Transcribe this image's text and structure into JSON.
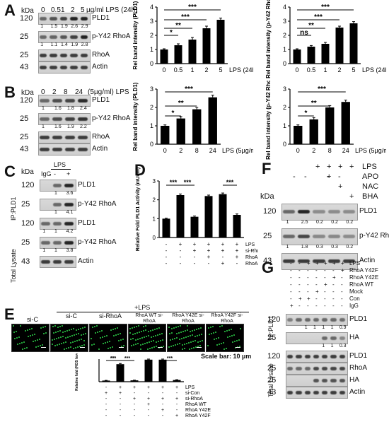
{
  "panels": {
    "A": {
      "label": "A",
      "kda": "kDa",
      "lanes": [
        "0",
        "0.5",
        "1",
        "2",
        "5"
      ],
      "treatment": "µg/ml LPS (24h)",
      "rows": [
        {
          "mw": "120",
          "name": "PLD1",
          "quant": [
            "1",
            "1.5",
            "1.9",
            "2.6",
            "2.9"
          ]
        },
        {
          "mw": "25",
          "name": "p-Y42 RhoA",
          "quant": [
            "1",
            "1.1",
            "1.4",
            "1.9",
            "2.8"
          ]
        },
        {
          "mw": "25",
          "name": "RhoA",
          "quant": []
        },
        {
          "mw": "43",
          "name": "Actin",
          "quant": []
        }
      ]
    },
    "B": {
      "label": "B",
      "kda": "kDa",
      "lanes": [
        "0",
        "2",
        "8",
        "24"
      ],
      "treatment": "(5µg/ml) LPS",
      "rows": [
        {
          "mw": "120",
          "name": "PLD1",
          "quant": [
            "1",
            "1.6",
            "1.8",
            "2.4"
          ]
        },
        {
          "mw": "25",
          "name": "p-Y42 RhoA",
          "quant": [
            "1",
            "1.6",
            "1.9",
            "2.2"
          ]
        },
        {
          "mw": "25",
          "name": "RhoA",
          "quant": []
        },
        {
          "mw": "43",
          "name": "Actin",
          "quant": []
        }
      ]
    },
    "C": {
      "label": "C",
      "kda": "kDa",
      "cols": [
        "IgG",
        "-",
        "+"
      ],
      "lps": "LPS",
      "ip": "IP:PLD1",
      "total": "Total Lysate",
      "rows": [
        {
          "mw": "120",
          "name": "PLD1",
          "quant": [
            "1",
            "3.6"
          ]
        },
        {
          "mw": "25",
          "name": "p-Y42 RhoA",
          "quant": [
            "1",
            "4.1"
          ]
        },
        {
          "mw": "120",
          "name": "PLD1",
          "quant": [
            "1",
            "1",
            "4.2"
          ]
        },
        {
          "mw": "25",
          "name": "p-Y42 RhoA",
          "quant": [
            "1",
            "1",
            "3.8"
          ]
        },
        {
          "mw": "43",
          "name": "Actin",
          "quant": []
        }
      ]
    },
    "D": {
      "label": "D",
      "rowlabels": [
        "LPS",
        "si-RhoA",
        "RhoA WT",
        "RhoA Y42E"
      ]
    },
    "E": {
      "label": "E",
      "header": "+LPS",
      "images": [
        "si-C",
        "si-C",
        "si-RhoA",
        "RhoA WT si-RhoA",
        "RhoA Y42E si-RhoA",
        "RhoA Y42F si-RhoA"
      ],
      "scalebar": "Scale bar: 10 µm",
      "rowlabels": [
        "LPS",
        "si-Con",
        "si-RhoA",
        "RhoA WT",
        "RhoA Y42E",
        "RhoA Y42F"
      ]
    },
    "F": {
      "label": "F",
      "kda": "kDa",
      "conds": [
        "LPS",
        "APO",
        "NAC",
        "BHA"
      ],
      "rows": [
        {
          "mw": "120",
          "name": "PLD1",
          "quant": [
            "1",
            "2.5",
            "0.2",
            "0.2",
            "0.2"
          ]
        },
        {
          "mw": "25",
          "name": "p-Y42 RhoA",
          "quant": [
            "1",
            "1.8",
            "0.3",
            "0.3",
            "0.2"
          ]
        },
        {
          "mw": "43",
          "name": "Actin",
          "quant": []
        }
      ]
    },
    "G": {
      "label": "G",
      "conds": [
        "LPS",
        "RhoA Y42F",
        "RhoA Y42E",
        "RhoA WT",
        "Mock",
        "Con",
        "IgG"
      ],
      "ip": "IP:PLD1",
      "total": "Total Lysate",
      "rows": [
        {
          "mw": "120",
          "name": "PLD1",
          "quant": [
            "1",
            "1",
            "1",
            "1",
            "0.9"
          ]
        },
        {
          "mw": "25",
          "name": "HA",
          "quant": [
            "1",
            "1",
            "0.3"
          ]
        },
        {
          "mw": "120",
          "name": "PLD1",
          "quant": []
        },
        {
          "mw": "25",
          "name": "RhoA",
          "quant": []
        },
        {
          "mw": "25",
          "name": "HA",
          "quant": []
        },
        {
          "mw": "43",
          "name": "Actin",
          "quant": []
        }
      ]
    }
  },
  "chart_data": [
    {
      "type": "bar",
      "id": "A1",
      "categories": [
        "0",
        "0.5",
        "1",
        "2",
        "5"
      ],
      "values": [
        1.0,
        1.3,
        1.7,
        2.5,
        3.1
      ],
      "errors": [
        0.05,
        0.1,
        0.15,
        0.15,
        0.12
      ],
      "ylabel": "Rel band intensity (PLD1)",
      "xlabel": "LPS (24h)",
      "ylim": [
        0,
        4
      ],
      "yticks": [
        "0",
        "1",
        "2",
        "3",
        "4"
      ],
      "sig": [
        "*",
        "**",
        "***",
        "***"
      ]
    },
    {
      "type": "bar",
      "id": "A2",
      "categories": [
        "0",
        "0.5",
        "1",
        "2",
        "5"
      ],
      "values": [
        1.0,
        1.2,
        1.4,
        2.55,
        2.85
      ],
      "errors": [
        0.05,
        0.08,
        0.1,
        0.1,
        0.12
      ],
      "ylabel": "Rel band intensity (p-Y42 RhoA)",
      "xlabel": "LPS (24h)",
      "ylim": [
        0,
        4
      ],
      "yticks": [
        "0",
        "1",
        "2",
        "3",
        "4"
      ],
      "sig": [
        "ns",
        "**",
        "***",
        "***"
      ]
    },
    {
      "type": "bar",
      "id": "B1",
      "categories": [
        "0",
        "2",
        "8",
        "24"
      ],
      "values": [
        1.0,
        1.4,
        1.9,
        2.55
      ],
      "errors": [
        0.05,
        0.1,
        0.1,
        0.12
      ],
      "ylabel": "Rel band intensity (PLD1)",
      "xlabel": "LPS (5µg/ml)",
      "ylim": [
        0,
        3
      ],
      "yticks": [
        "0",
        "1",
        "2",
        "3"
      ],
      "sig": [
        "*",
        "**",
        "***"
      ]
    },
    {
      "type": "bar",
      "id": "B2",
      "categories": [
        "0",
        "2",
        "8",
        "24"
      ],
      "values": [
        1.0,
        1.35,
        2.0,
        2.3
      ],
      "errors": [
        0.05,
        0.1,
        0.1,
        0.1
      ],
      "ylabel": "Rel band intensity (p-Y42 RhoA)",
      "xlabel": "LPS (5µg/ml)",
      "ylim": [
        0,
        3
      ],
      "yticks": [
        "0",
        "1",
        "2",
        "3"
      ],
      "sig": [
        "*",
        "**",
        "***"
      ]
    },
    {
      "type": "bar",
      "id": "D",
      "categories": [
        "1",
        "2",
        "3",
        "4",
        "5",
        "6"
      ],
      "values": [
        1.0,
        2.25,
        1.1,
        2.2,
        2.3,
        1.2
      ],
      "errors": [
        0.03,
        0.06,
        0.04,
        0.05,
        0.06,
        0.05
      ],
      "ylabel": "Relative Fold PLD1 Activity (mU/ml)",
      "ylim": [
        0,
        3
      ],
      "yticks": [
        "0",
        "1",
        "2",
        "3"
      ],
      "sig": [
        "***",
        "***",
        "***"
      ],
      "matrix": [
        [
          "-",
          "+",
          "+",
          "+",
          "+",
          "+"
        ],
        [
          "-",
          "-",
          "+",
          "+",
          "+",
          "+"
        ],
        [
          "-",
          "-",
          "-",
          "+",
          "-",
          "+"
        ],
        [
          "-",
          "-",
          "-",
          "-",
          "+",
          "-"
        ]
      ]
    },
    {
      "type": "bar",
      "id": "E",
      "categories": [
        "1",
        "2",
        "3",
        "4",
        "5",
        "6"
      ],
      "values": [
        1,
        15.5,
        1.2,
        19.5,
        19.5,
        1.5
      ],
      "errors": [
        0.2,
        0.6,
        0.2,
        0.5,
        0.5,
        0.3
      ],
      "ylabel": "Relative fold (ROS level)",
      "ylim": [
        0,
        20
      ],
      "sig": [
        "***",
        "***",
        "***",
        "***"
      ],
      "matrix": [
        [
          "-",
          "+",
          "+",
          "+",
          "+",
          "+"
        ],
        [
          "+",
          "+",
          "-",
          "-",
          "-",
          "-"
        ],
        [
          "-",
          "-",
          "+",
          "+",
          "+",
          "+"
        ],
        [
          "-",
          "-",
          "-",
          "+",
          "-",
          "-"
        ],
        [
          "-",
          "-",
          "-",
          "-",
          "+",
          "-"
        ],
        [
          "-",
          "-",
          "-",
          "-",
          "-",
          "+"
        ]
      ]
    }
  ]
}
